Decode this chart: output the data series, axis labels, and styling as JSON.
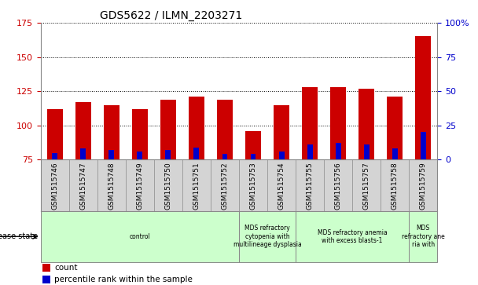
{
  "title": "GDS5622 / ILMN_2203271",
  "samples": [
    "GSM1515746",
    "GSM1515747",
    "GSM1515748",
    "GSM1515749",
    "GSM1515750",
    "GSM1515751",
    "GSM1515752",
    "GSM1515753",
    "GSM1515754",
    "GSM1515755",
    "GSM1515756",
    "GSM1515757",
    "GSM1515758",
    "GSM1515759"
  ],
  "count_values": [
    112,
    117,
    115,
    112,
    119,
    121,
    119,
    96,
    115,
    128,
    128,
    127,
    121,
    165
  ],
  "percentile_values": [
    5,
    8,
    7,
    6,
    7,
    9,
    4,
    4,
    6,
    11,
    12,
    11,
    8,
    20
  ],
  "bar_bottom": 75,
  "ylim_left": [
    75,
    175
  ],
  "ylim_right": [
    0,
    100
  ],
  "yticks_left": [
    75,
    100,
    125,
    150,
    175
  ],
  "yticks_right": [
    0,
    25,
    50,
    75,
    100
  ],
  "yticklabels_right": [
    "0",
    "25",
    "50",
    "75",
    "100%"
  ],
  "count_color": "#cc0000",
  "percentile_color": "#0000cc",
  "bar_width": 0.55,
  "disease_groups": [
    {
      "label": "control",
      "start": 0,
      "end": 7
    },
    {
      "label": "MDS refractory\ncytopenia with\nmultilineage dysplasia",
      "start": 7,
      "end": 9
    },
    {
      "label": "MDS refractory anemia\nwith excess blasts-1",
      "start": 9,
      "end": 13
    },
    {
      "label": "MDS\nrefractory ane\nria with",
      "start": 13,
      "end": 14
    }
  ],
  "disease_group_color": "#ccffcc",
  "disease_state_label": "disease state",
  "legend_count": "count",
  "legend_percentile": "percentile rank within the sample",
  "tick_label_color_left": "#cc0000",
  "tick_label_color_right": "#0000cc",
  "grid_color": "#000000",
  "bg_color": "#ffffff",
  "bar_area_bg": "#ffffff",
  "xtick_area_bg": "#d4d4d4",
  "border_color": "#888888"
}
